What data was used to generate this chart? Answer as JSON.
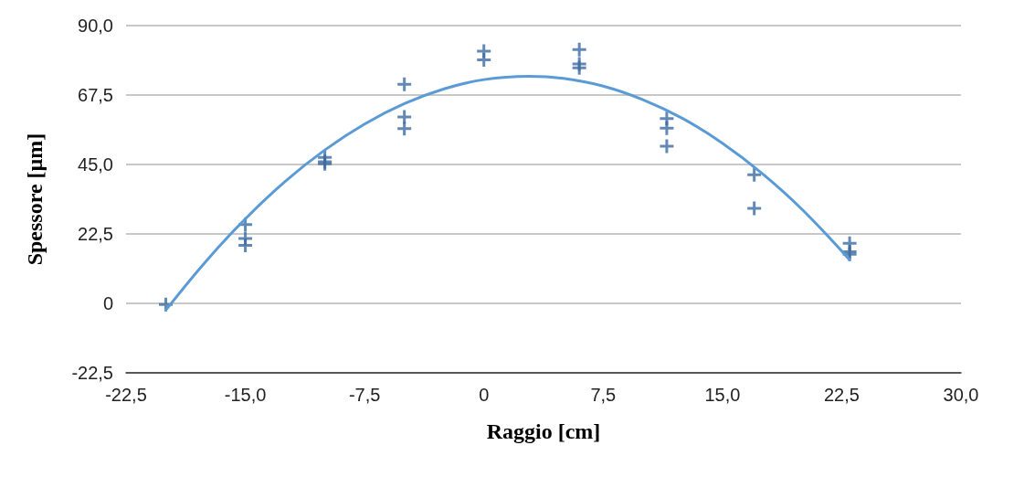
{
  "chart_data": {
    "type": "scatter",
    "xlabel": "Raggio [cm]",
    "ylabel": "Spessore [µm]",
    "xlim": [
      -22.5,
      30
    ],
    "ylim": [
      -22.5,
      90
    ],
    "xticks": [
      {
        "value": -22.5,
        "label": "-22,5"
      },
      {
        "value": -15,
        "label": "-15,0"
      },
      {
        "value": -7.5,
        "label": "-7,5"
      },
      0,
      {
        "value": 7.5,
        "label": "7,5"
      },
      {
        "value": 15,
        "label": "15,0"
      },
      {
        "value": 22.5,
        "label": "22,5"
      },
      {
        "value": 30,
        "label": "30,0"
      }
    ],
    "yticks": [
      {
        "value": -22.5,
        "label": "-22,5"
      },
      0,
      {
        "value": 22.5,
        "label": "22,5"
      },
      {
        "value": 45,
        "label": "45,0"
      },
      {
        "value": 67.5,
        "label": "67,5"
      },
      {
        "value": 90,
        "label": "90,0"
      }
    ],
    "grid": "y",
    "series": [
      {
        "marker": "cross",
        "color": "#3c6aa0",
        "x": [
          -20,
          -15,
          -15,
          -15,
          -10,
          -10,
          -10,
          -5,
          -5,
          -5,
          0,
          0,
          6,
          6,
          6,
          11.5,
          11.5,
          11.5,
          17,
          17,
          23,
          23,
          23
        ],
        "values": [
          -0.4,
          25.5,
          21.0,
          18.8,
          47.3,
          45.9,
          45.2,
          71.0,
          60.4,
          56.6,
          81.7,
          78.9,
          82.2,
          77.6,
          76.3,
          59.9,
          56.8,
          50.9,
          41.7,
          30.8,
          19.5,
          16.7,
          15.9
        ]
      },
      {
        "type": "line",
        "marker": "none",
        "line_style": "solid",
        "color": "#5b9bd5",
        "x": [
          -20,
          -17.5,
          -15,
          -12.5,
          -10,
          -7.5,
          -5,
          -2.5,
          0,
          2.8,
          5,
          7.5,
          10,
          12.5,
          15,
          17.5,
          20,
          23
        ],
        "values": [
          -2.2,
          13.5,
          27.4,
          39.5,
          49.7,
          58.1,
          64.7,
          69.5,
          72.5,
          73.6,
          72.9,
          70.4,
          66.0,
          59.9,
          51.9,
          42.1,
          30.5,
          14.1
        ]
      }
    ]
  }
}
